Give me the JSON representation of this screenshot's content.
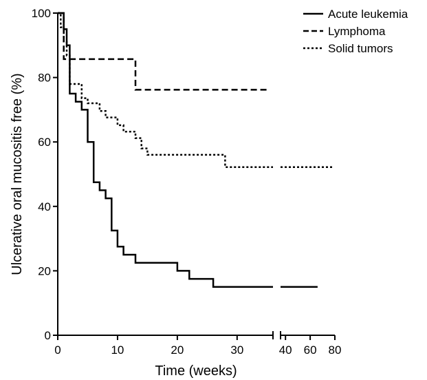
{
  "chart_data": {
    "type": "line",
    "subtype": "kaplan-meier step",
    "title": "",
    "xlabel": "Time (weeks)",
    "ylabel": "Ulcerative oral mucositis free (%)",
    "ylim": [
      0,
      100
    ],
    "y_ticks": [
      0,
      20,
      40,
      60,
      80,
      100
    ],
    "x_axis": {
      "broken": true,
      "segment1": {
        "range": [
          0,
          36
        ],
        "ticks": [
          0,
          10,
          20,
          30
        ]
      },
      "segment2": {
        "range": [
          36,
          80
        ],
        "ticks": [
          40,
          60,
          80
        ]
      }
    },
    "legend_position": "top-right",
    "grid": false,
    "series": [
      {
        "name": "Acute leukemia",
        "style": "solid",
        "steps": [
          [
            0,
            100
          ],
          [
            1,
            95
          ],
          [
            1.5,
            90
          ],
          [
            2,
            75
          ],
          [
            3,
            72.5
          ],
          [
            4,
            70
          ],
          [
            5,
            60
          ],
          [
            6,
            47.5
          ],
          [
            7,
            45
          ],
          [
            8,
            42.5
          ],
          [
            9,
            32.5
          ],
          [
            10,
            27.5
          ],
          [
            11,
            25
          ],
          [
            13,
            22.5
          ],
          [
            20,
            20
          ],
          [
            22,
            17.5
          ],
          [
            26,
            15
          ],
          [
            36,
            15
          ],
          [
            40,
            15
          ],
          [
            66,
            15
          ]
        ],
        "end": 66
      },
      {
        "name": "Lymphoma",
        "style": "dashed",
        "steps": [
          [
            0,
            100
          ],
          [
            1,
            85.7
          ],
          [
            13,
            76.2
          ]
        ],
        "end": 35
      },
      {
        "name": "Solid tumors",
        "style": "dotted",
        "steps": [
          [
            0,
            100
          ],
          [
            0.5,
            95.6
          ],
          [
            1,
            91.2
          ],
          [
            1.5,
            86.8
          ],
          [
            2,
            78
          ],
          [
            4,
            73.6
          ],
          [
            5,
            72
          ],
          [
            7,
            69.6
          ],
          [
            8,
            67.6
          ],
          [
            10,
            65.2
          ],
          [
            11,
            63.2
          ],
          [
            13,
            61.2
          ],
          [
            14,
            58
          ],
          [
            15,
            56
          ],
          [
            28,
            52.2
          ],
          [
            36,
            52.2
          ],
          [
            40,
            52.2
          ],
          [
            78,
            52.2
          ]
        ],
        "end": 78
      }
    ]
  }
}
